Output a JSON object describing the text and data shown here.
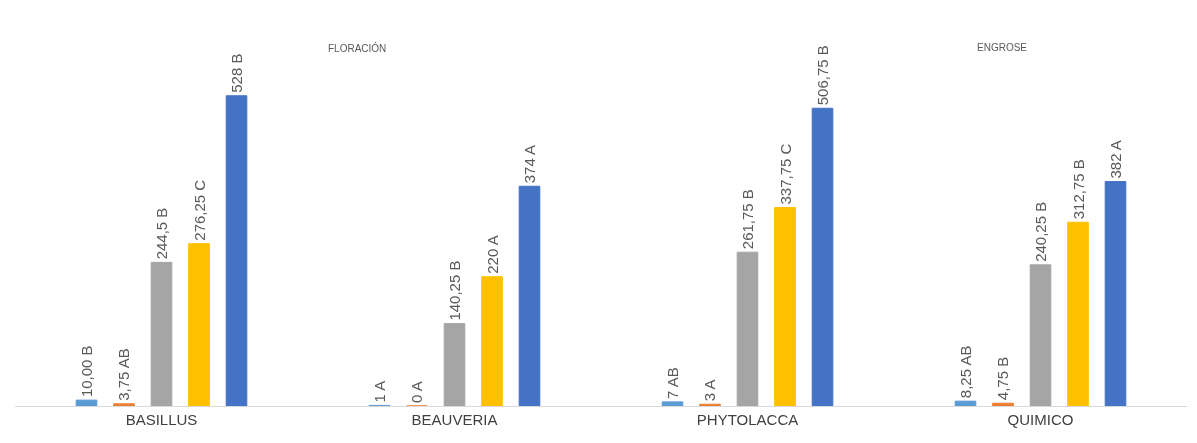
{
  "chart_data": {
    "type": "bar",
    "categories": [
      "BASILLUS",
      "BEAUVERIA",
      "PHYTOLACCA",
      "QUIMICO"
    ],
    "series": [
      {
        "color": "#5b9bd5",
        "values": [
          10,
          1,
          7,
          8.25
        ],
        "value_labels": [
          "10,00 B",
          "1 A",
          "7 AB",
          "8,25 AB"
        ]
      },
      {
        "color": "#ed7d31",
        "values": [
          3.75,
          0,
          3,
          4.75
        ],
        "value_labels": [
          "3,75 AB",
          "0 A",
          "3 A",
          "4,75 B"
        ]
      },
      {
        "color": "#a5a5a5",
        "values": [
          244.5,
          140.25,
          261.75,
          240.25
        ],
        "value_labels": [
          "244,5 B",
          "140,25 B",
          "261,75 B",
          "240,25 B"
        ]
      },
      {
        "color": "#ffc000",
        "values": [
          276.25,
          220,
          337.75,
          312.75
        ],
        "value_labels": [
          "276,25 C",
          "220 A",
          "337,75 C",
          "312,75 B"
        ]
      },
      {
        "color": "#4472c4",
        "values": [
          528,
          374,
          506.75,
          382
        ],
        "value_labels": [
          "528 B",
          "374 A",
          "506,75 B",
          "382 A"
        ]
      }
    ],
    "annotations": [
      "FLORACIÓN",
      "ENGROSE"
    ]
  }
}
